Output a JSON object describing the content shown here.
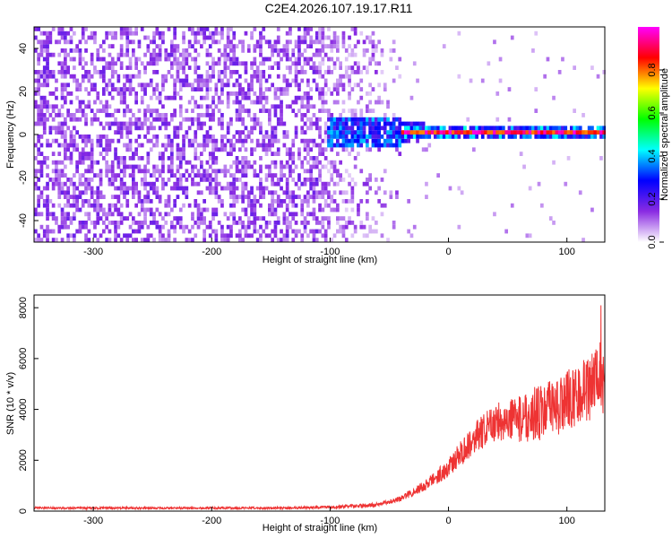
{
  "title": "C2E4.2026.107.19.17.R11",
  "chart_data": [
    {
      "type": "heatmap",
      "name": "spectrogram",
      "xlabel": "Height of straight line (km)",
      "ylabel": "Frequency (Hz)",
      "xlim": [
        -350,
        132
      ],
      "ylim": [
        -50,
        50
      ],
      "xticks": [
        -300,
        -200,
        -100,
        0,
        100
      ],
      "yticks": [
        -40,
        -20,
        0,
        20,
        40
      ],
      "zlim": [
        0,
        1
      ],
      "description_regions": [
        {
          "x_range": [
            -350,
            -110
          ],
          "structure": "broadband noise",
          "amplitude": 0.12
        },
        {
          "x_range": [
            -110,
            -40
          ],
          "structure": "fading noise with central cluster",
          "amplitude": 0.2
        },
        {
          "x_range": [
            -40,
            132
          ],
          "structure": "narrow line near 0 Hz",
          "amplitude": 0.85
        }
      ]
    },
    {
      "type": "line",
      "name": "snr",
      "xlabel": "Height of straight line (km)",
      "ylabel": "SNR (10 * v/v)",
      "xlim": [
        -350,
        132
      ],
      "ylim": [
        0,
        8500
      ],
      "xticks": [
        -300,
        -200,
        -100,
        0,
        100
      ],
      "yticks": [
        0,
        2000,
        4000,
        6000,
        8000
      ],
      "series": [
        {
          "name": "SNR",
          "color": "#ee3333",
          "trend_x": [
            -350,
            -150,
            -100,
            -60,
            -40,
            -20,
            0,
            20,
            40,
            60,
            80,
            100,
            120,
            132
          ],
          "trend_y": [
            120,
            120,
            150,
            250,
            500,
            1000,
            1700,
            2800,
            3500,
            3700,
            3900,
            4300,
            5000,
            5300
          ]
        }
      ]
    }
  ],
  "colorbar": {
    "label": "Normalized spectral amplitude",
    "ticks": [
      "0.0",
      "0.2",
      "0.4",
      "0.6",
      "0.8"
    ],
    "tick_values": [
      0,
      0.2,
      0.4,
      0.6,
      0.8
    ],
    "range": [
      0,
      1
    ],
    "colors": [
      "#ffffff",
      "#8a2be2",
      "#0000ff",
      "#00ffff",
      "#00ff00",
      "#ffff00",
      "#ff0000",
      "#ff00ff"
    ]
  }
}
